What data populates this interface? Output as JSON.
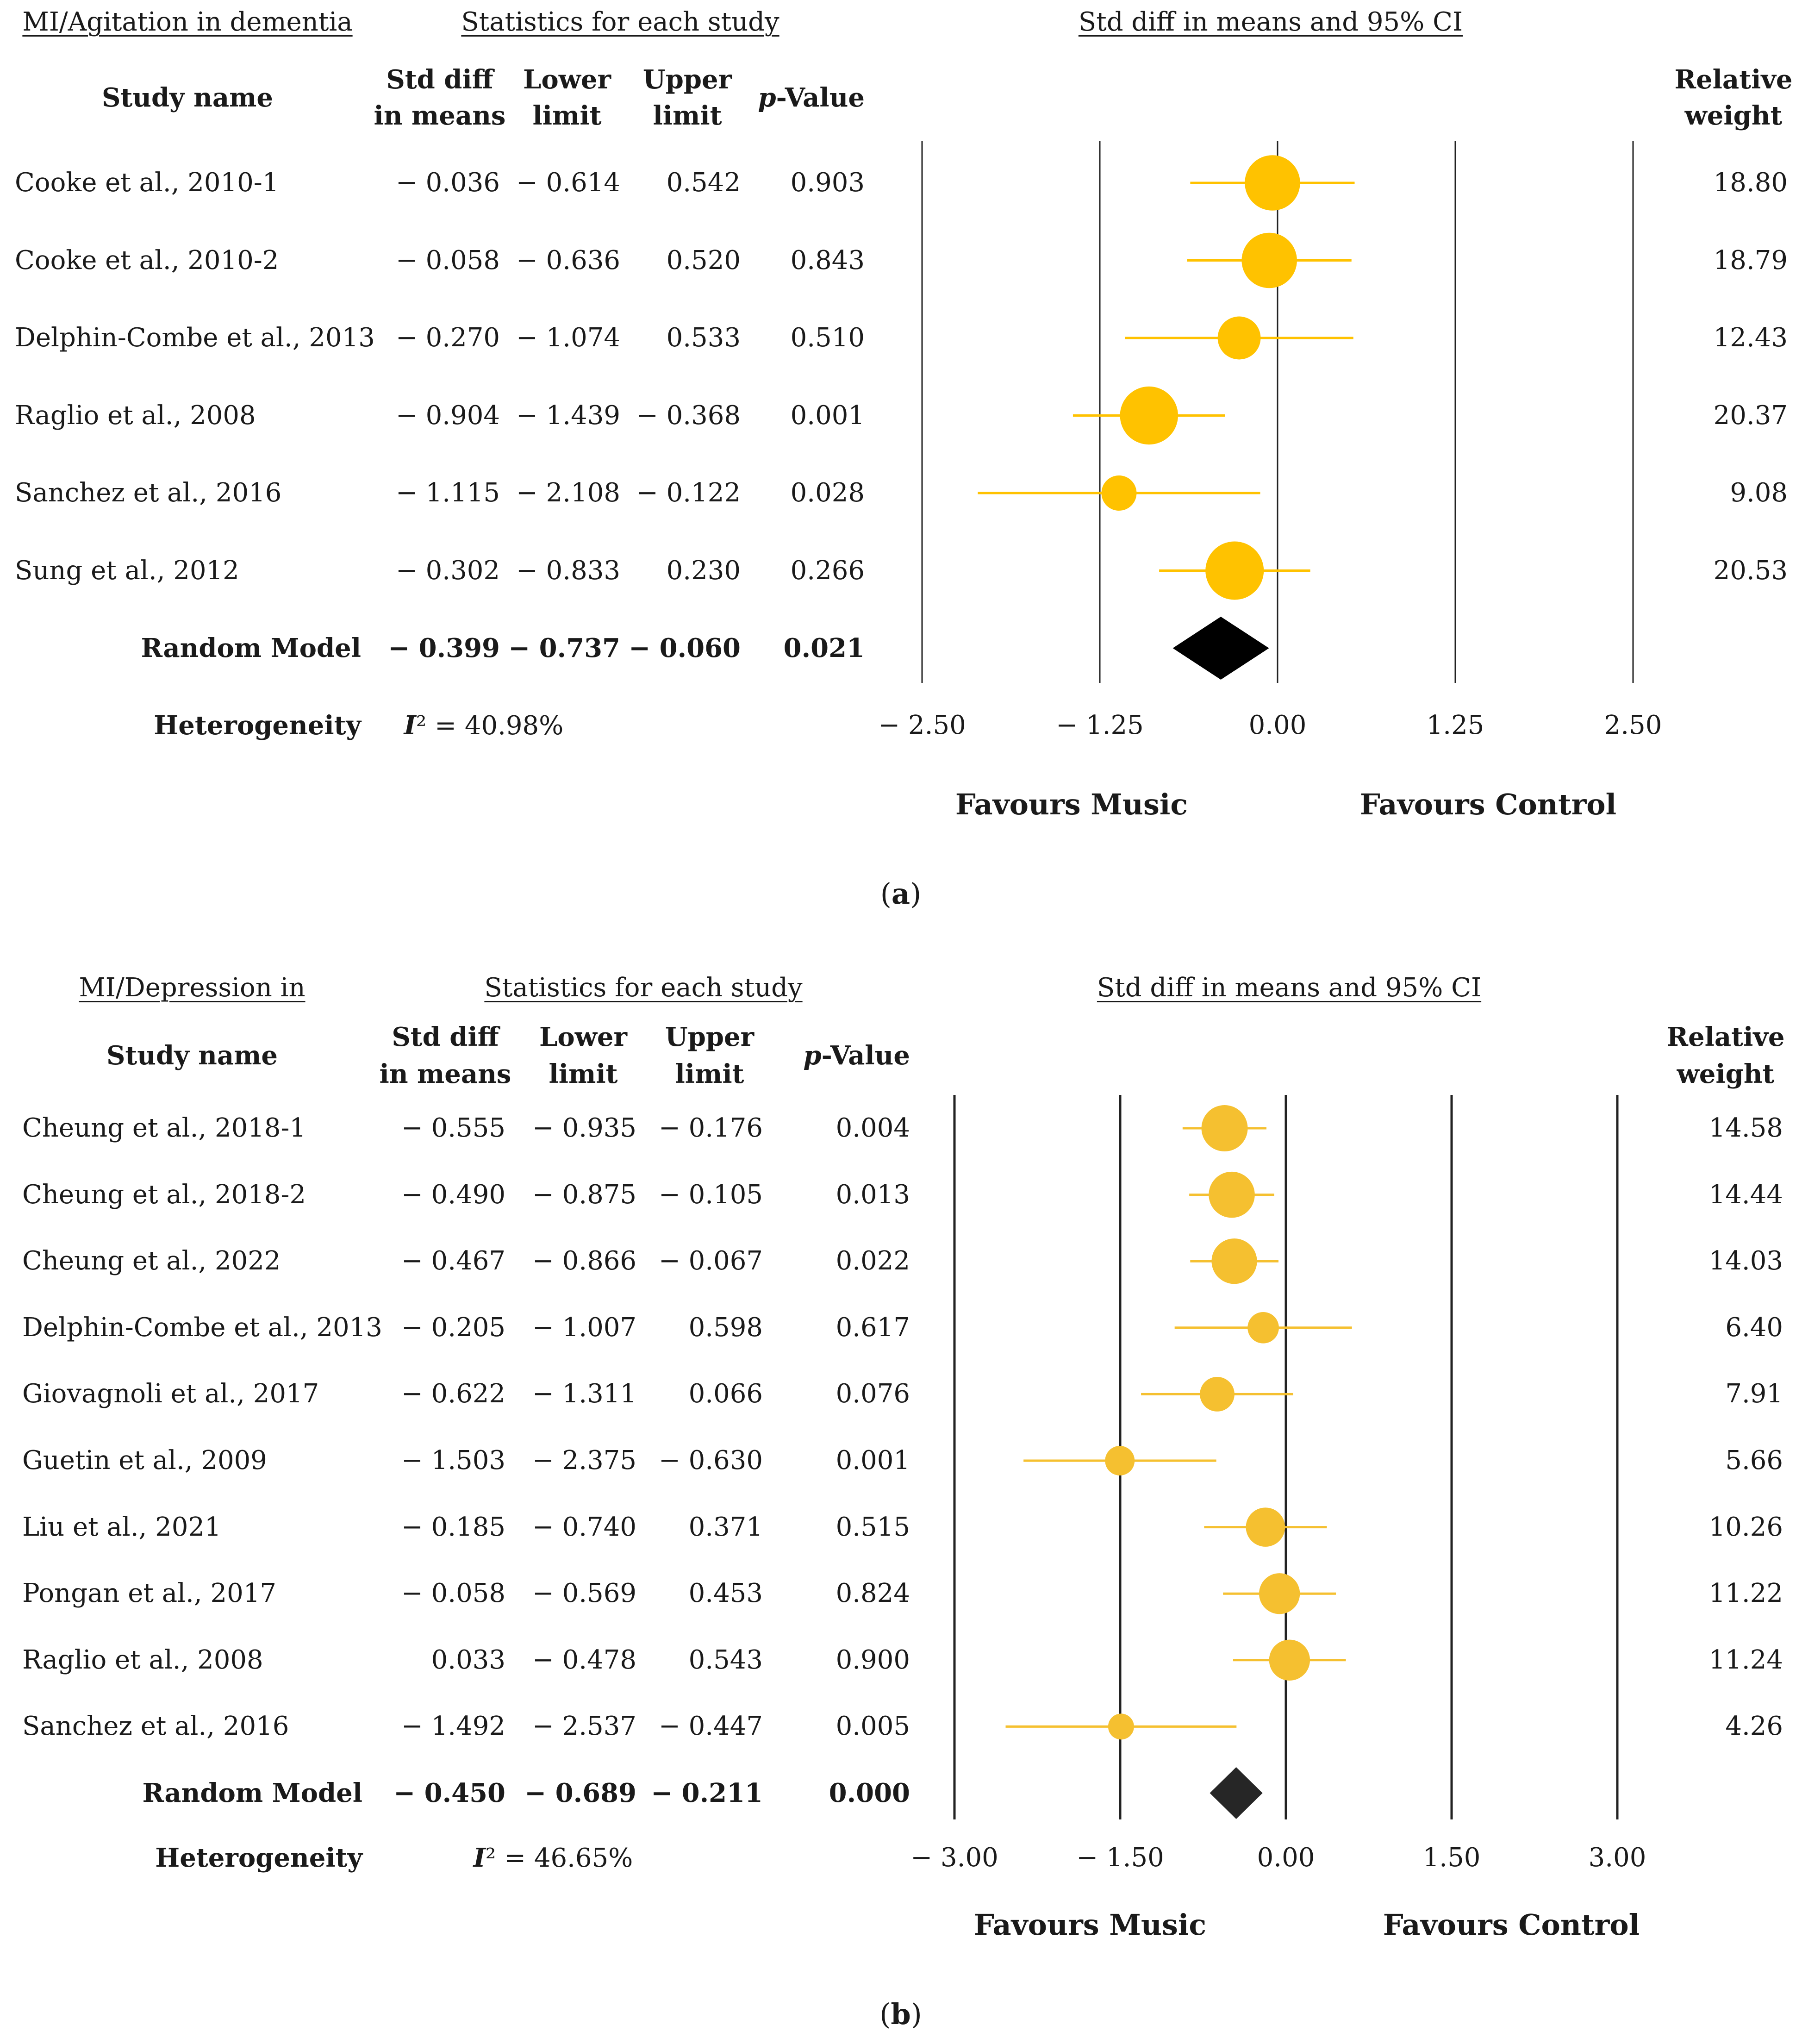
{
  "panels": [
    {
      "caption": "(a)",
      "section_titles": {
        "left": "MI/Agitation in dementia",
        "middle": "Statistics for each study",
        "right": "Std diff in means and 95% CI"
      },
      "headers": {
        "study": "Study name",
        "std_diff": [
          "Std diff",
          "in means"
        ],
        "lower": [
          "Lower",
          "limit"
        ],
        "upper": [
          "Upper",
          "limit"
        ],
        "pvalue_prefix": "p",
        "pvalue_suffix": "-Value",
        "weight": [
          "Relative",
          "weight"
        ]
      },
      "heterogeneity_label": "Heterogeneity",
      "heterogeneity_i2": "I",
      "heterogeneity_value": "² = 40.98%",
      "favours_left": "Favours Music",
      "favours_right": "Favours Control",
      "colors": {
        "marker": "#ffc200",
        "line": "#ffc200",
        "diamond": "#000000",
        "axis": "#222222"
      }
    },
    {
      "caption": "(b)",
      "section_titles": {
        "left": "MI/Depression in",
        "middle": "Statistics for each study",
        "right": "Std diff in means and 95% CI"
      },
      "headers": {
        "study": "Study name",
        "std_diff": [
          "Std diff",
          "in means"
        ],
        "lower": [
          "Lower",
          "limit"
        ],
        "upper": [
          "Upper",
          "limit"
        ],
        "pvalue_prefix": "p",
        "pvalue_suffix": "-Value",
        "weight": [
          "Relative",
          "weight"
        ]
      },
      "heterogeneity_label": "Heterogeneity",
      "heterogeneity_i2": "I",
      "heterogeneity_value": "² = 46.65%",
      "favours_left": "Favours Music",
      "favours_right": "Favours Control",
      "colors": {
        "marker": "#f5c030",
        "line": "#f5c030",
        "diamond": "#262626",
        "axis": "#222222"
      }
    }
  ],
  "chart_data": [
    {
      "type": "forest",
      "title": "MI/Agitation in dementia",
      "xlabel": "Std diff in means and 95% CI",
      "x_ticks": [
        "− 2.50",
        "− 1.25",
        "0.00",
        "1.25",
        "2.50"
      ],
      "x_tick_values": [
        -2.5,
        -1.25,
        0,
        1.25,
        2.5
      ],
      "xlim": [
        -2.5,
        2.5
      ],
      "studies": [
        {
          "name": "Cooke et al., 2010-1",
          "std_diff": -0.036,
          "lower": -0.614,
          "upper": 0.542,
          "p": 0.903,
          "weight": 18.8,
          "labels": [
            "− 0.036",
            "− 0.614",
            "0.542",
            "0.903",
            "18.80"
          ]
        },
        {
          "name": "Cooke et al., 2010-2",
          "std_diff": -0.058,
          "lower": -0.636,
          "upper": 0.52,
          "p": 0.843,
          "weight": 18.79,
          "labels": [
            "− 0.058",
            "− 0.636",
            "0.520",
            "0.843",
            "18.79"
          ]
        },
        {
          "name": "Delphin-Combe et al., 2013",
          "std_diff": -0.27,
          "lower": -1.074,
          "upper": 0.533,
          "p": 0.51,
          "weight": 12.43,
          "labels": [
            "− 0.270",
            "− 1.074",
            "0.533",
            "0.510",
            "12.43"
          ]
        },
        {
          "name": "Raglio et al., 2008",
          "std_diff": -0.904,
          "lower": -1.439,
          "upper": -0.368,
          "p": 0.001,
          "weight": 20.37,
          "labels": [
            "− 0.904",
            "− 1.439",
            "− 0.368",
            "0.001",
            "20.37"
          ]
        },
        {
          "name": "Sanchez et al., 2016",
          "std_diff": -1.115,
          "lower": -2.108,
          "upper": -0.122,
          "p": 0.028,
          "weight": 9.08,
          "labels": [
            "− 1.115",
            "− 2.108",
            "− 0.122",
            "0.028",
            "9.08"
          ]
        },
        {
          "name": "Sung et al., 2012",
          "std_diff": -0.302,
          "lower": -0.833,
          "upper": 0.23,
          "p": 0.266,
          "weight": 20.53,
          "labels": [
            "− 0.302",
            "− 0.833",
            "0.230",
            "0.266",
            "20.53"
          ]
        }
      ],
      "pooled": {
        "name": "Random Model",
        "std_diff": -0.399,
        "lower": -0.737,
        "upper": -0.06,
        "p": 0.021,
        "labels": [
          "− 0.399",
          "− 0.737",
          "− 0.060",
          "0.021"
        ]
      },
      "heterogeneity_I2": 40.98
    },
    {
      "type": "forest",
      "title": "MI/Depression in",
      "xlabel": "Std diff in means and 95% CI",
      "x_ticks": [
        "− 3.00",
        "− 1.50",
        "0.00",
        "1.50",
        "3.00"
      ],
      "x_tick_values": [
        -3.0,
        -1.5,
        0,
        1.5,
        3.0
      ],
      "xlim": [
        -3.0,
        3.0
      ],
      "studies": [
        {
          "name": "Cheung et al., 2018-1",
          "std_diff": -0.555,
          "lower": -0.935,
          "upper": -0.176,
          "p": 0.004,
          "weight": 14.58,
          "labels": [
            "− 0.555",
            "− 0.935",
            "− 0.176",
            "0.004",
            "14.58"
          ]
        },
        {
          "name": "Cheung et al., 2018-2",
          "std_diff": -0.49,
          "lower": -0.875,
          "upper": -0.105,
          "p": 0.013,
          "weight": 14.44,
          "labels": [
            "− 0.490",
            "− 0.875",
            "− 0.105",
            "0.013",
            "14.44"
          ]
        },
        {
          "name": "Cheung et al., 2022",
          "std_diff": -0.467,
          "lower": -0.866,
          "upper": -0.067,
          "p": 0.022,
          "weight": 14.03,
          "labels": [
            "− 0.467",
            "− 0.866",
            "− 0.067",
            "0.022",
            "14.03"
          ]
        },
        {
          "name": "Delphin-Combe et al., 2013",
          "std_diff": -0.205,
          "lower": -1.007,
          "upper": 0.598,
          "p": 0.617,
          "weight": 6.4,
          "labels": [
            "− 0.205",
            "− 1.007",
            "0.598",
            "0.617",
            "6.40"
          ]
        },
        {
          "name": "Giovagnoli et al., 2017",
          "std_diff": -0.622,
          "lower": -1.311,
          "upper": 0.066,
          "p": 0.076,
          "weight": 7.91,
          "labels": [
            "− 0.622",
            "− 1.311",
            "0.066",
            "0.076",
            "7.91"
          ]
        },
        {
          "name": "Guetin et al., 2009",
          "std_diff": -1.503,
          "lower": -2.375,
          "upper": -0.63,
          "p": 0.001,
          "weight": 5.66,
          "labels": [
            "− 1.503",
            "− 2.375",
            "− 0.630",
            "0.001",
            "5.66"
          ]
        },
        {
          "name": "Liu et al., 2021",
          "std_diff": -0.185,
          "lower": -0.74,
          "upper": 0.371,
          "p": 0.515,
          "weight": 10.26,
          "labels": [
            "− 0.185",
            "− 0.740",
            "0.371",
            "0.515",
            "10.26"
          ]
        },
        {
          "name": "Pongan et al., 2017",
          "std_diff": -0.058,
          "lower": -0.569,
          "upper": 0.453,
          "p": 0.824,
          "weight": 11.22,
          "labels": [
            "− 0.058",
            "− 0.569",
            "0.453",
            "0.824",
            "11.22"
          ]
        },
        {
          "name": "Raglio et al., 2008",
          "std_diff": 0.033,
          "lower": -0.478,
          "upper": 0.543,
          "p": 0.9,
          "weight": 11.24,
          "labels": [
            "0.033",
            "− 0.478",
            "0.543",
            "0.900",
            "11.24"
          ]
        },
        {
          "name": "Sanchez et al., 2016",
          "std_diff": -1.492,
          "lower": -2.537,
          "upper": -0.447,
          "p": 0.005,
          "weight": 4.26,
          "labels": [
            "− 1.492",
            "− 2.537",
            "− 0.447",
            "0.005",
            "4.26"
          ]
        }
      ],
      "pooled": {
        "name": "Random Model",
        "std_diff": -0.45,
        "lower": -0.689,
        "upper": -0.211,
        "p": 0.0,
        "labels": [
          "− 0.450",
          "− 0.689",
          "− 0.211",
          "0.000"
        ]
      },
      "heterogeneity_I2": 46.65
    }
  ]
}
